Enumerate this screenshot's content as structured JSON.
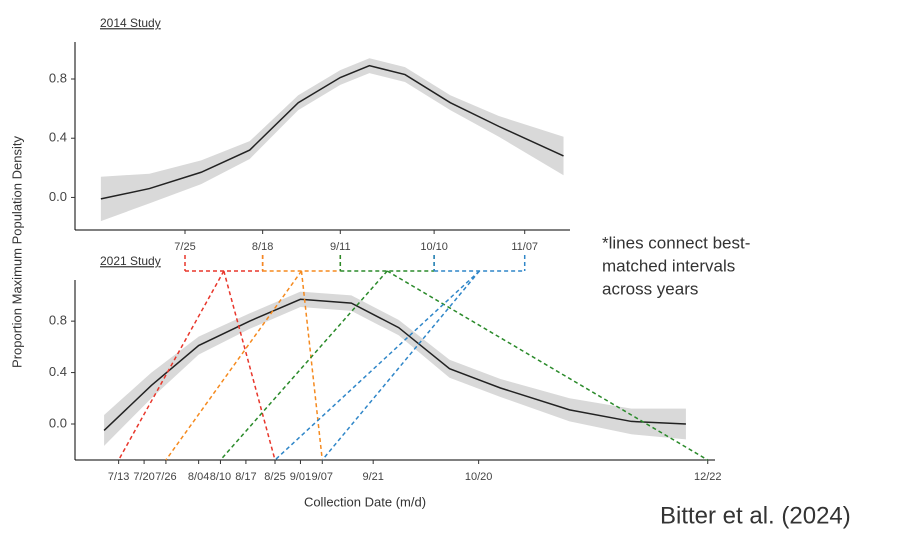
{
  "ylabel": "Proportion  Maximum Population Density",
  "note": [
    "*lines connect best-",
    "matched intervals",
    "across years"
  ],
  "citation": "Bitter et al. (2024)",
  "chart_data": [
    {
      "type": "line",
      "title": "2014 Study",
      "x": [
        180,
        195,
        211,
        226,
        241,
        254,
        263,
        274,
        288,
        303,
        323
      ],
      "series": [
        {
          "color": "#222222",
          "values": [
            -0.01,
            0.06,
            0.17,
            0.32,
            0.64,
            0.81,
            0.89,
            0.83,
            0.64,
            0.48,
            0.28
          ],
          "lower": [
            -0.16,
            -0.04,
            0.09,
            0.26,
            0.59,
            0.76,
            0.84,
            0.78,
            0.59,
            0.41,
            0.15
          ],
          "upper": [
            0.14,
            0.16,
            0.25,
            0.38,
            0.69,
            0.86,
            0.94,
            0.88,
            0.69,
            0.55,
            0.41
          ]
        }
      ],
      "band_color": "#d9d9d9",
      "xlim": [
        172,
        325
      ],
      "ylim": [
        -0.22,
        1.05
      ],
      "xticks": [
        {
          "value": 206,
          "label": "7/25"
        },
        {
          "value": 230,
          "label": "8/18"
        },
        {
          "value": 254,
          "label": "9/11"
        },
        {
          "value": 283,
          "label": "10/10"
        },
        {
          "value": 311,
          "label": "11/07"
        }
      ],
      "yticks": [
        {
          "value": 0,
          "label": "0.0"
        },
        0.4,
        0.8
      ]
    },
    {
      "type": "line",
      "title": "2021 Study",
      "xlabel": "Collection Date (m/d)",
      "x": [
        190,
        203,
        216,
        230,
        244,
        258,
        271,
        285,
        299,
        318,
        335,
        350
      ],
      "series": [
        {
          "color": "#222222",
          "values": [
            -0.05,
            0.3,
            0.61,
            0.8,
            0.97,
            0.94,
            0.75,
            0.43,
            0.28,
            0.11,
            0.02,
            0.0
          ],
          "lower": [
            -0.17,
            0.2,
            0.54,
            0.74,
            0.91,
            0.88,
            0.69,
            0.36,
            0.21,
            0.02,
            -0.08,
            -0.12
          ],
          "upper": [
            0.07,
            0.4,
            0.68,
            0.86,
            1.03,
            1.0,
            0.81,
            0.5,
            0.35,
            0.2,
            0.12,
            0.12
          ]
        }
      ],
      "band_color": "#d9d9d9",
      "xlim": [
        182,
        358
      ],
      "ylim": [
        -0.28,
        1.12
      ],
      "xticks": [
        {
          "value": 194,
          "label": "7/13"
        },
        {
          "value": 201,
          "label": "7/20"
        },
        {
          "value": 207,
          "label": "7/26"
        },
        {
          "value": 216,
          "label": "8/04"
        },
        {
          "value": 222,
          "label": "8/10"
        },
        {
          "value": 229,
          "label": "8/17"
        },
        {
          "value": 237,
          "label": "8/25"
        },
        {
          "value": 244,
          "label": "9/01"
        },
        {
          "value": 250,
          "label": "9/07"
        },
        {
          "value": 264,
          "label": "9/21"
        },
        {
          "value": 293,
          "label": "10/20"
        },
        {
          "value": 356,
          "label": "12/22"
        }
      ],
      "yticks": [
        {
          "value": 0,
          "label": "0.0"
        },
        0.4,
        0.8
      ]
    }
  ],
  "matches": [
    {
      "color": "#e8362b",
      "top": [
        206,
        230
      ],
      "bottom": [
        194,
        237
      ]
    },
    {
      "color": "#f58a1f",
      "top": [
        230,
        254
      ],
      "bottom": [
        207,
        250
      ]
    },
    {
      "color": "#2a8a2a",
      "top": [
        254,
        283
      ],
      "bottom": [
        222,
        356
      ]
    },
    {
      "color": "#2f86c8",
      "top": [
        283,
        311
      ],
      "bottom": [
        237,
        250
      ]
    }
  ]
}
